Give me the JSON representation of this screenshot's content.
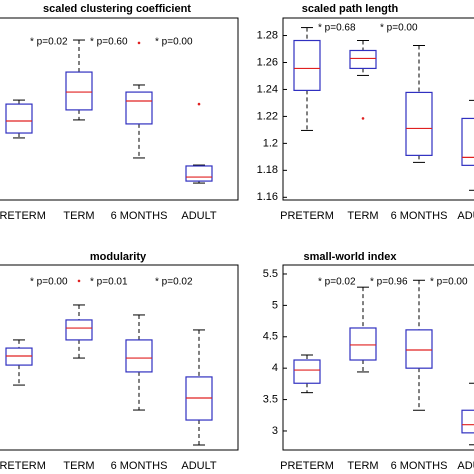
{
  "chart_data": [
    {
      "type": "box",
      "title": "scaled clustering coefficient",
      "categories": [
        "PRETERM",
        "TERM",
        "6 MONTHS",
        "ADULT"
      ],
      "whisker_low": [
        34.1,
        44.0,
        23.1,
        9.3
      ],
      "q1": [
        36.8,
        49.5,
        41.8,
        10.4
      ],
      "median": [
        43.4,
        59.3,
        54.4,
        12.6
      ],
      "q3": [
        52.7,
        70.3,
        59.3,
        18.7
      ],
      "whisker_high": [
        54.9,
        87.9,
        63.2,
        19.2
      ],
      "outliers": [
        [],
        [],
        [
          86.3
        ],
        [
          52.7
        ]
      ],
      "annotations": [
        "* p=0.02",
        "* p=0.60",
        "* p=0.00"
      ],
      "ylim": [
        0,
        100
      ],
      "box_color": "#3030c0",
      "median_color": "#e02020"
    },
    {
      "type": "box",
      "title": "scaled path length",
      "categories": [
        "PRETERM",
        "TERM",
        "6 MONTHS",
        "ADULT"
      ],
      "whisker_low": [
        1.2096,
        1.2504,
        1.1859,
        1.1652
      ],
      "q1": [
        1.2393,
        1.2556,
        1.1911,
        1.1837
      ],
      "median": [
        1.2556,
        1.263,
        1.2111,
        1.1896
      ],
      "q3": [
        1.2763,
        1.2689,
        1.2378,
        1.2185
      ],
      "whisker_high": [
        1.2859,
        1.2763,
        1.2726,
        1.2319
      ],
      "outliers": [
        [],
        [
          1.2185
        ],
        [],
        []
      ],
      "annotations": [
        "* p=0.68",
        "* p=0.00"
      ],
      "ylim": [
        1.158,
        1.293
      ],
      "yticks": [
        1.16,
        1.18,
        {
          "value": 1.2,
          "label": "1.2"
        },
        1.22,
        1.24,
        1.26,
        1.28
      ],
      "box_color": "#3030c0",
      "median_color": "#e02020"
    },
    {
      "type": "box",
      "title": "modularity",
      "categories": [
        "PRETERM",
        "TERM",
        "6 MONTHS",
        "ADULT"
      ],
      "whisker_low": [
        35.1,
        49.7,
        21.6,
        2.7
      ],
      "q1": [
        45.9,
        59.5,
        42.2,
        16.2
      ],
      "median": [
        50.8,
        65.9,
        49.7,
        28.1
      ],
      "q3": [
        55.1,
        70.3,
        59.5,
        39.5
      ],
      "whisker_high": [
        59.5,
        78.4,
        73.0,
        64.9
      ],
      "outliers": [
        [],
        [
          91.4
        ],
        [],
        []
      ],
      "annotations": [
        "* p=0.00",
        "* p=0.01",
        "* p=0.02"
      ],
      "ylim": [
        0,
        100
      ],
      "box_color": "#3030c0",
      "median_color": "#e02020"
    },
    {
      "type": "box",
      "title": "small-world index",
      "categories": [
        "PRETERM",
        "TERM",
        "6 MONTHS",
        "ADULT"
      ],
      "whisker_low": [
        3.61,
        3.94,
        3.33,
        2.78
      ],
      "q1": [
        3.76,
        4.13,
        4.0,
        2.97
      ],
      "median": [
        3.97,
        4.37,
        4.29,
        3.1
      ],
      "q3": [
        4.13,
        4.64,
        4.61,
        3.33
      ],
      "whisker_high": [
        4.21,
        5.29,
        5.4,
        3.76
      ],
      "outliers": [
        [],
        [],
        [],
        []
      ],
      "annotations": [
        "* p=0.02",
        "* p=0.96",
        "* p=0.00"
      ],
      "ylim": [
        2.697,
        5.643
      ],
      "yticks": [
        3,
        3.5,
        4,
        4.5,
        5,
        5.5
      ],
      "box_color": "#3030c0",
      "median_color": "#e02020"
    }
  ]
}
